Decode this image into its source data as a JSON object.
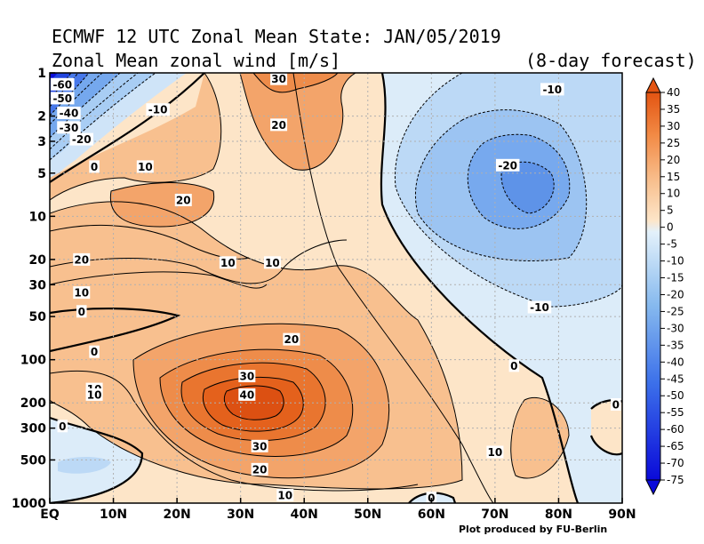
{
  "title_line1": "ECMWF 12 UTC Zonal Mean State: JAN/05/2019",
  "title_line2": "Zonal Mean zonal wind [m/s]",
  "forecast_label": "(8-day forecast)",
  "credit": "Plot produced by FU-Berlin",
  "chart_data": {
    "type": "contour",
    "x_ticks": [
      "EQ",
      "10N",
      "20N",
      "30N",
      "40N",
      "50N",
      "60N",
      "70N",
      "80N",
      "90N"
    ],
    "x_values": [
      0,
      10,
      20,
      30,
      40,
      50,
      60,
      70,
      80,
      90
    ],
    "y_ticks": [
      "1",
      "2",
      "3",
      "5",
      "10",
      "20",
      "30",
      "50",
      "100",
      "200",
      "300",
      "500",
      "1000"
    ],
    "y_values": [
      1,
      2,
      3,
      5,
      10,
      20,
      30,
      50,
      100,
      200,
      300,
      500,
      1000
    ],
    "y_scale": "log",
    "xlim": [
      0,
      90
    ],
    "ylim": [
      1000,
      1
    ],
    "grid": true,
    "colorbar": {
      "labels": [
        "40",
        "35",
        "30",
        "25",
        "20",
        "15",
        "10",
        "5",
        "0",
        "-5",
        "-10",
        "-15",
        "-20",
        "-25",
        "-30",
        "-35",
        "-40",
        "-45",
        "-50",
        "-55",
        "-60",
        "-65",
        "-70",
        "-75"
      ],
      "values": [
        40,
        35,
        30,
        25,
        20,
        15,
        10,
        5,
        0,
        -5,
        -10,
        -15,
        -20,
        -25,
        -30,
        -35,
        -40,
        -45,
        -50,
        -55,
        -60,
        -65,
        -70,
        -75
      ]
    },
    "contour_labels": [
      {
        "text": "-60",
        "lat": 2,
        "p": 1.2
      },
      {
        "text": "-50",
        "lat": 2,
        "p": 1.5
      },
      {
        "text": "-40",
        "lat": 3,
        "p": 1.9
      },
      {
        "text": "-30",
        "lat": 3,
        "p": 2.4
      },
      {
        "text": "-20",
        "lat": 5,
        "p": 2.9
      },
      {
        "text": "-10",
        "lat": 17,
        "p": 1.8
      },
      {
        "text": "30",
        "lat": 36,
        "p": 1.1
      },
      {
        "text": "20",
        "lat": 36,
        "p": 2.3
      },
      {
        "text": "0",
        "lat": 7,
        "p": 4.5
      },
      {
        "text": "10",
        "lat": 15,
        "p": 4.5
      },
      {
        "text": "20",
        "lat": 21,
        "p": 7.7
      },
      {
        "text": "20",
        "lat": 5,
        "p": 20
      },
      {
        "text": "10",
        "lat": 28,
        "p": 21
      },
      {
        "text": "10",
        "lat": 35,
        "p": 21
      },
      {
        "text": "10",
        "lat": 5,
        "p": 34
      },
      {
        "text": "0",
        "lat": 5,
        "p": 46
      },
      {
        "text": "0",
        "lat": 7,
        "p": 88
      },
      {
        "text": "10",
        "lat": 7,
        "p": 160
      },
      {
        "text": "10",
        "lat": 7,
        "p": 175
      },
      {
        "text": "0",
        "lat": 2,
        "p": 290
      },
      {
        "text": "20",
        "lat": 38,
        "p": 72
      },
      {
        "text": "30",
        "lat": 31,
        "p": 130
      },
      {
        "text": "40",
        "lat": 31,
        "p": 175
      },
      {
        "text": "30",
        "lat": 33,
        "p": 400
      },
      {
        "text": "20",
        "lat": 33,
        "p": 580
      },
      {
        "text": "10",
        "lat": 37,
        "p": 880
      },
      {
        "text": "0",
        "lat": 60,
        "p": 920
      },
      {
        "text": "10",
        "lat": 70,
        "p": 440
      },
      {
        "text": "0",
        "lat": 89,
        "p": 205
      },
      {
        "text": "0",
        "lat": 73,
        "p": 110
      },
      {
        "text": "-10",
        "lat": 79,
        "p": 1.3
      },
      {
        "text": "-20",
        "lat": 72,
        "p": 4.4
      },
      {
        "text": "-10",
        "lat": 77,
        "p": 43
      }
    ]
  }
}
